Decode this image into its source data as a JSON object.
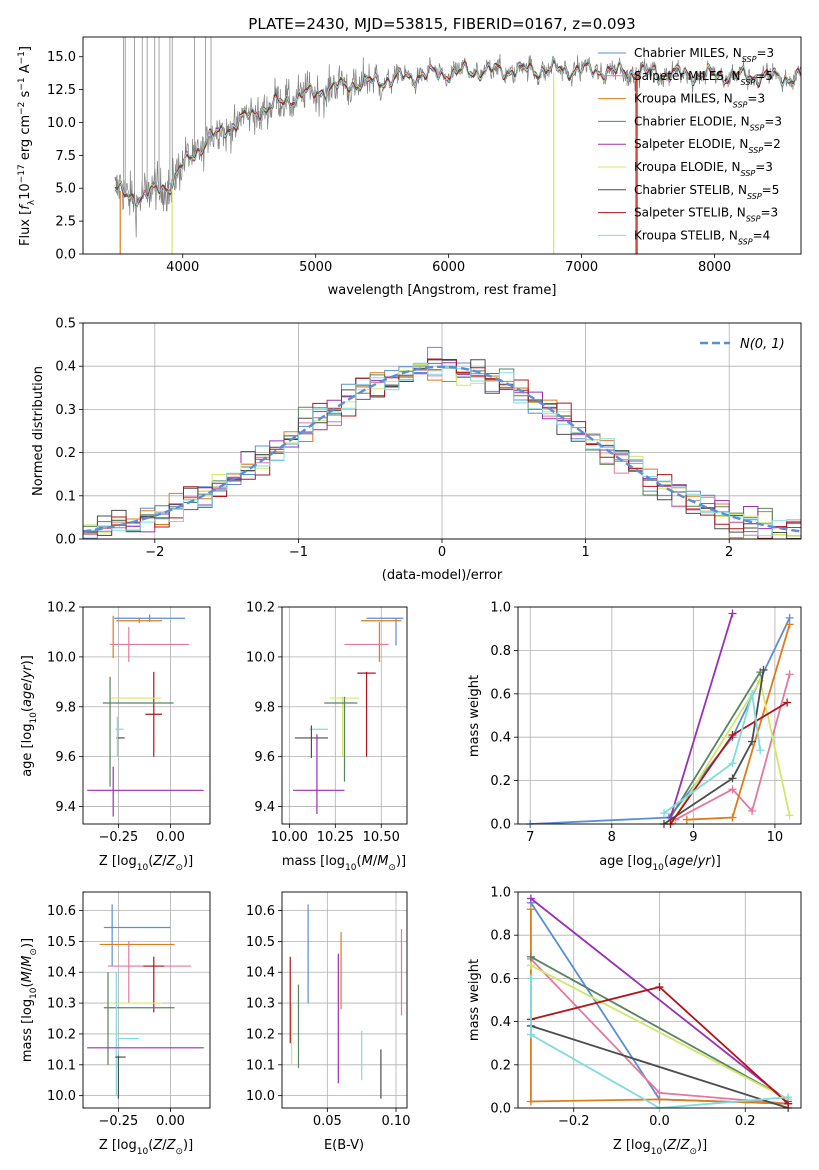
{
  "figure": {
    "title": "PLATE=2430, MJD=53815, FIBERID=0167, z=0.093"
  },
  "colors": {
    "Chabrier MILES": "#5b8ed6",
    "Salpeter MILES": "#e4799f",
    "Kroupa MILES": "#e07b1a",
    "Chabrier ELODIE": "#5a8462",
    "Salpeter ELODIE": "#9a30b4",
    "Kroupa ELODIE": "#cfe86a",
    "Chabrier STELIB": "#4d4d4d",
    "Salpeter STELIB": "#b0141b",
    "Kroupa STELIB": "#7fdbe0",
    "normal": "#5b8ed6"
  },
  "chart_data": [
    {
      "id": "spectrum",
      "type": "line",
      "xlabel": "wavelength [Angstrom, rest frame]",
      "ylabel": "Flux [f_λ 10^-17 erg cm^-2 s^-1 A^-1]",
      "xlim": [
        3250,
        8650
      ],
      "ylim": [
        0,
        16.5
      ],
      "xticks": [
        4000,
        5000,
        6000,
        7000,
        8000
      ],
      "yticks": [
        0.0,
        2.5,
        5.0,
        7.5,
        10.0,
        12.5,
        15.0
      ],
      "data_color": "#808080",
      "continuum": [
        [
          3490,
          5.0
        ],
        [
          3600,
          4.2
        ],
        [
          3750,
          4.6
        ],
        [
          3900,
          5.2
        ],
        [
          4000,
          6.7
        ],
        [
          4200,
          8.8
        ],
        [
          4500,
          10.5
        ],
        [
          4800,
          11.8
        ],
        [
          5000,
          12.3
        ],
        [
          5200,
          12.8
        ],
        [
          5500,
          13.2
        ],
        [
          5800,
          13.6
        ],
        [
          6200,
          13.9
        ],
        [
          6600,
          14.0
        ],
        [
          7000,
          14.0
        ],
        [
          7400,
          13.8
        ],
        [
          8000,
          13.6
        ],
        [
          8650,
          13.4
        ]
      ],
      "legend": [
        {
          "name": "Chabrier MILES",
          "nssp": "3"
        },
        {
          "name": "Salpeter MILES",
          "nssp": "5"
        },
        {
          "name": "Kroupa MILES",
          "nssp": "3"
        },
        {
          "name": "Chabrier ELODIE",
          "nssp": "3"
        },
        {
          "name": "Salpeter ELODIE",
          "nssp": "2"
        },
        {
          "name": "Kroupa ELODIE",
          "nssp": "3"
        },
        {
          "name": "Chabrier STELIB",
          "nssp": "5"
        },
        {
          "name": "Salpeter STELIB",
          "nssp": "3"
        },
        {
          "name": "Kroupa STELIB",
          "nssp": "4"
        }
      ],
      "drops": [
        {
          "x": 3530,
          "y1": 4.8,
          "y2": 0,
          "model": "Kroupa MILES"
        },
        {
          "x": 3920,
          "y1": 5.0,
          "y2": 0,
          "model": "Kroupa ELODIE"
        },
        {
          "x": 6790,
          "y1": 13.8,
          "y2": 0,
          "model": "Kroupa ELODIE"
        },
        {
          "x": 7410,
          "y1": 13.9,
          "y2": 0,
          "model": "Salpeter STELIB"
        },
        {
          "x": 7420,
          "y1": 13.9,
          "y2": 0,
          "model": "Kroupa MILES"
        }
      ]
    },
    {
      "id": "residuals",
      "type": "line",
      "xlabel": "(data-model)/error",
      "ylabel": "Normed distribution",
      "xlim": [
        -2.5,
        2.5
      ],
      "ylim": [
        0,
        0.5
      ],
      "xticks": [
        -2,
        -1,
        0,
        1,
        2
      ],
      "yticks": [
        0.0,
        0.1,
        0.2,
        0.3,
        0.4,
        0.5
      ],
      "grid": true,
      "legend": "N(0, 1)",
      "bin_width": 0.1
    },
    {
      "id": "age-vs-Z",
      "type": "scatter",
      "xlabel": "Z [log10(Z/Z⊙)]",
      "ylabel": "age  [log10(age/yr)]",
      "xlim": [
        -0.42,
        0.19
      ],
      "ylim": [
        9.33,
        10.2
      ],
      "xticks": [
        -0.25,
        0.0
      ],
      "yticks": [
        9.4,
        9.6,
        9.8,
        10.0,
        10.2
      ],
      "grid": true,
      "crosses": [
        {
          "model": "Chabrier MILES",
          "x": -0.1,
          "xerr": 0.17,
          "y": 10.155,
          "yerr": 0.015
        },
        {
          "model": "Kroupa MILES",
          "x": -0.15,
          "xerr": 0.11,
          "y": 10.145,
          "yerr": 0.01
        },
        {
          "model": "Kroupa MILES",
          "x": -0.275,
          "xerr": 0.001,
          "y": 10.08,
          "yerr": 0.085
        },
        {
          "model": "Salpeter MILES",
          "x": -0.1,
          "xerr": 0.19,
          "y": 10.05,
          "yerr": 0.0
        },
        {
          "model": "Salpeter MILES",
          "x": -0.2,
          "xerr": 0.001,
          "y": 10.05,
          "yerr": 0.07
        },
        {
          "model": "Salpeter STELIB",
          "x": -0.08,
          "xerr": 0.04,
          "y": 9.77,
          "yerr": 0.17
        },
        {
          "model": "Kroupa ELODIE",
          "x": -0.165,
          "xerr": 0.12,
          "y": 9.835,
          "yerr": 0.0
        },
        {
          "model": "Chabrier ELODIE",
          "x": -0.155,
          "xerr": 0.17,
          "y": 9.815,
          "yerr": 0.0
        },
        {
          "model": "Chabrier ELODIE",
          "x": -0.29,
          "xerr": 0.001,
          "y": 9.7,
          "yerr": 0.22
        },
        {
          "model": "Kroupa STELIB",
          "x": -0.245,
          "xerr": 0.02,
          "y": 9.71,
          "yerr": 0.0
        },
        {
          "model": "Chabrier STELIB",
          "x": -0.24,
          "xerr": 0.02,
          "y": 9.675,
          "yerr": 0.0
        },
        {
          "model": "Kroupa STELIB",
          "x": -0.255,
          "xerr": 0.001,
          "y": 9.68,
          "yerr": 0.08
        },
        {
          "model": "Salpeter ELODIE",
          "x": -0.12,
          "xerr": 0.28,
          "y": 9.465,
          "yerr": 0.0
        },
        {
          "model": "Salpeter ELODIE",
          "x": -0.275,
          "xerr": 0.001,
          "y": 9.46,
          "yerr": 0.1
        }
      ]
    },
    {
      "id": "age-vs-mass",
      "type": "scatter",
      "xlabel": "mass [log10(M/M⊙)]",
      "ylabel": "",
      "xlim": [
        9.96,
        10.64
      ],
      "ylim": [
        9.33,
        10.2
      ],
      "xticks": [
        10.0,
        10.25,
        10.5
      ],
      "yticks": [
        9.4,
        9.6,
        9.8,
        10.0,
        10.2
      ],
      "grid": true,
      "crosses": [
        {
          "model": "Chabrier MILES",
          "x": 10.52,
          "xerr": 0.1,
          "y": 10.155,
          "yerr": 0.0
        },
        {
          "model": "Chabrier MILES",
          "x": 10.58,
          "xerr": 0.001,
          "y": 10.1,
          "yerr": 0.055
        },
        {
          "model": "Kroupa MILES",
          "x": 10.5,
          "xerr": 0.11,
          "y": 10.145,
          "yerr": 0.0
        },
        {
          "model": "Kroupa MILES",
          "x": 10.49,
          "xerr": 0.001,
          "y": 10.06,
          "yerr": 0.08
        },
        {
          "model": "Salpeter MILES",
          "x": 10.42,
          "xerr": 0.12,
          "y": 10.05,
          "yerr": 0.0
        },
        {
          "model": "Salpeter STELIB",
          "x": 10.42,
          "xerr": 0.05,
          "y": 9.935,
          "yerr": 0.0
        },
        {
          "model": "Salpeter STELIB",
          "x": 10.42,
          "xerr": 0.001,
          "y": 9.77,
          "yerr": 0.17
        },
        {
          "model": "Kroupa ELODIE",
          "x": 10.3,
          "xerr": 0.08,
          "y": 9.835,
          "yerr": 0.0
        },
        {
          "model": "Kroupa ELODIE",
          "x": 10.29,
          "xerr": 0.001,
          "y": 9.72,
          "yerr": 0.12
        },
        {
          "model": "Chabrier ELODIE",
          "x": 10.28,
          "xerr": 0.09,
          "y": 9.815,
          "yerr": 0.0
        },
        {
          "model": "Chabrier ELODIE",
          "x": 10.3,
          "xerr": 0.001,
          "y": 9.67,
          "yerr": 0.17
        },
        {
          "model": "Kroupa STELIB",
          "x": 10.16,
          "xerr": 0.05,
          "y": 9.71,
          "yerr": 0.0
        },
        {
          "model": "Chabrier STELIB",
          "x": 10.12,
          "xerr": 0.09,
          "y": 9.675,
          "yerr": 0.0
        },
        {
          "model": "Chabrier STELIB",
          "x": 10.12,
          "xerr": 0.001,
          "y": 9.66,
          "yerr": 0.065
        },
        {
          "model": "Salpeter ELODIE",
          "x": 10.16,
          "xerr": 0.14,
          "y": 9.465,
          "yerr": 0.0
        },
        {
          "model": "Salpeter ELODIE",
          "x": 10.15,
          "xerr": 0.001,
          "y": 9.53,
          "yerr": 0.16
        }
      ]
    },
    {
      "id": "weight-vs-age",
      "type": "line",
      "xlabel": "age  [log10(age/yr)]",
      "ylabel": "mass weight",
      "xlim": [
        6.85,
        10.32
      ],
      "ylim": [
        0,
        1.0
      ],
      "xticks": [
        7,
        8,
        9,
        10
      ],
      "yticks": [
        0.0,
        0.2,
        0.4,
        0.6,
        0.8,
        1.0
      ],
      "grid": true,
      "series": [
        {
          "model": "Chabrier MILES",
          "points": [
            [
              7.0,
              0.0
            ],
            [
              8.7,
              0.03
            ],
            [
              9.48,
              0.4
            ],
            [
              10.18,
              0.95
            ]
          ]
        },
        {
          "model": "Salpeter MILES",
          "points": [
            [
              8.78,
              0.02
            ],
            [
              9.48,
              0.16
            ],
            [
              9.72,
              0.06
            ],
            [
              10.18,
              0.69
            ]
          ]
        },
        {
          "model": "Kroupa MILES",
          "points": [
            [
              8.92,
              0.02
            ],
            [
              9.48,
              0.03
            ],
            [
              10.18,
              0.92
            ]
          ]
        },
        {
          "model": "Chabrier ELODIE",
          "points": [
            [
              8.72,
              0.03
            ],
            [
              9.82,
              0.7
            ]
          ]
        },
        {
          "model": "Salpeter ELODIE",
          "points": [
            [
              8.72,
              0.03
            ],
            [
              9.48,
              0.97
            ]
          ]
        },
        {
          "model": "Kroupa ELODIE",
          "points": [
            [
              8.74,
              0.01
            ],
            [
              9.82,
              0.66
            ],
            [
              10.18,
              0.04
            ]
          ]
        },
        {
          "model": "Chabrier STELIB",
          "points": [
            [
              8.64,
              0.0
            ],
            [
              9.48,
              0.21
            ],
            [
              9.72,
              0.38
            ],
            [
              9.86,
              0.71
            ]
          ]
        },
        {
          "model": "Salpeter STELIB",
          "points": [
            [
              8.72,
              0.0
            ],
            [
              9.48,
              0.41
            ],
            [
              10.15,
              0.56
            ]
          ]
        },
        {
          "model": "Kroupa STELIB",
          "points": [
            [
              8.64,
              0.05
            ],
            [
              9.48,
              0.28
            ],
            [
              9.72,
              0.6
            ],
            [
              9.82,
              0.34
            ]
          ]
        }
      ]
    },
    {
      "id": "mass-vs-Z",
      "type": "scatter",
      "xlabel": "Z [log10(Z/Z⊙)]",
      "ylabel": "mass [log10(M/M⊙)]",
      "xlim": [
        -0.42,
        0.19
      ],
      "ylim": [
        9.96,
        10.66
      ],
      "xticks": [
        -0.25,
        0.0
      ],
      "yticks": [
        10.0,
        10.1,
        10.2,
        10.3,
        10.4,
        10.5,
        10.6
      ],
      "grid": true,
      "crosses": [
        {
          "model": "Chabrier MILES",
          "x": -0.16,
          "xerr": 0.16,
          "y": 10.545,
          "yerr": 0.0
        },
        {
          "model": "Chabrier MILES",
          "x": -0.28,
          "xerr": 0.001,
          "y": 10.52,
          "yerr": 0.1
        },
        {
          "model": "Kroupa MILES",
          "x": -0.16,
          "xerr": 0.18,
          "y": 10.49,
          "yerr": 0.0
        },
        {
          "model": "Salpeter MILES",
          "x": -0.1,
          "xerr": 0.2,
          "y": 10.42,
          "yerr": 0.0
        },
        {
          "model": "Salpeter MILES",
          "x": -0.2,
          "xerr": 0.001,
          "y": 10.4,
          "yerr": 0.1
        },
        {
          "model": "Salpeter STELIB",
          "x": -0.08,
          "xerr": 0.05,
          "y": 10.42,
          "yerr": 0.0
        },
        {
          "model": "Salpeter STELIB",
          "x": -0.08,
          "xerr": 0.001,
          "y": 10.36,
          "yerr": 0.09
        },
        {
          "model": "Kroupa ELODIE",
          "x": -0.17,
          "xerr": 0.13,
          "y": 10.3,
          "yerr": 0.0
        },
        {
          "model": "Chabrier ELODIE",
          "x": -0.15,
          "xerr": 0.17,
          "y": 10.285,
          "yerr": 0.0
        },
        {
          "model": "Chabrier ELODIE",
          "x": -0.3,
          "xerr": 0.001,
          "y": 10.25,
          "yerr": 0.15
        },
        {
          "model": "Kroupa STELIB",
          "x": -0.2,
          "xerr": 0.05,
          "y": 10.185,
          "yerr": 0.0
        },
        {
          "model": "Kroupa STELIB",
          "x": -0.26,
          "xerr": 0.001,
          "y": 10.2,
          "yerr": 0.2
        },
        {
          "model": "Salpeter ELODIE",
          "x": -0.12,
          "xerr": 0.28,
          "y": 10.155,
          "yerr": 0.0
        },
        {
          "model": "Chabrier STELIB",
          "x": -0.24,
          "xerr": 0.025,
          "y": 10.125,
          "yerr": 0.0
        },
        {
          "model": "Chabrier STELIB",
          "x": -0.25,
          "xerr": 0.001,
          "y": 10.06,
          "yerr": 0.07
        }
      ]
    },
    {
      "id": "mass-vs-ebv",
      "type": "scatter",
      "xlabel": "E(B-V)",
      "ylabel": "",
      "xlim": [
        0.017,
        0.108
      ],
      "ylim": [
        9.96,
        10.66
      ],
      "xticks": [
        0.05,
        0.1
      ],
      "yticks": [
        10.0,
        10.1,
        10.2,
        10.3,
        10.4,
        10.5,
        10.6
      ],
      "grid": true,
      "bars": [
        {
          "model": "Salpeter STELIB",
          "x": 0.023,
          "y1": 10.17,
          "y2": 10.45
        },
        {
          "model": "Kroupa ELODIE",
          "x": 0.024,
          "y1": 10.1,
          "y2": 10.3
        },
        {
          "model": "Chabrier ELODIE",
          "x": 0.029,
          "y1": 10.09,
          "y2": 10.36
        },
        {
          "model": "Chabrier MILES",
          "x": 0.036,
          "y1": 10.3,
          "y2": 10.62
        },
        {
          "model": "Kroupa MILES",
          "x": 0.06,
          "y1": 10.28,
          "y2": 10.53
        },
        {
          "model": "Salpeter ELODIE",
          "x": 0.058,
          "y1": 10.04,
          "y2": 10.46
        },
        {
          "model": "Kroupa STELIB",
          "x": 0.075,
          "y1": 10.05,
          "y2": 10.21
        },
        {
          "model": "Chabrier STELIB",
          "x": 0.089,
          "y1": 9.99,
          "y2": 10.15
        },
        {
          "model": "Salpeter MILES",
          "x": 0.104,
          "y1": 10.26,
          "y2": 10.54
        }
      ]
    },
    {
      "id": "weight-vs-Z",
      "type": "line",
      "xlabel": "Z [log10(Z/Z⊙)]",
      "ylabel": "mass weight",
      "xlim": [
        -0.33,
        0.33
      ],
      "ylim": [
        0,
        1.0
      ],
      "xticks": [
        -0.2,
        0.0,
        0.2
      ],
      "yticks": [
        0.0,
        0.2,
        0.4,
        0.6,
        0.8,
        1.0
      ],
      "grid": true,
      "series": [
        {
          "model": "Chabrier MILES",
          "points": [
            [
              -0.3,
              0.95
            ],
            [
              0.0,
              0.04
            ],
            [
              0.3,
              0.02
            ]
          ]
        },
        {
          "model": "Salpeter MILES",
          "points": [
            [
              -0.3,
              0.69
            ],
            [
              0.0,
              0.07
            ],
            [
              0.3,
              0.02
            ]
          ]
        },
        {
          "model": "Kroupa MILES",
          "points": [
            [
              -0.3,
              0.92
            ],
            [
              -0.3,
              0.03
            ],
            [
              0.0,
              0.04
            ],
            [
              0.3,
              0.02
            ]
          ]
        },
        {
          "model": "Chabrier ELODIE",
          "points": [
            [
              -0.3,
              0.7
            ],
            [
              0.3,
              0.04
            ]
          ]
        },
        {
          "model": "Salpeter ELODIE",
          "points": [
            [
              -0.3,
              0.97
            ],
            [
              0.3,
              0.03
            ]
          ]
        },
        {
          "model": "Kroupa ELODIE",
          "points": [
            [
              -0.3,
              0.66
            ],
            [
              0.3,
              0.04
            ]
          ]
        },
        {
          "model": "Chabrier STELIB",
          "points": [
            [
              -0.3,
              0.38
            ],
            [
              0.3,
              0.0
            ]
          ]
        },
        {
          "model": "Salpeter STELIB",
          "points": [
            [
              -0.3,
              0.41
            ],
            [
              0.0,
              0.56
            ],
            [
              0.3,
              0.02
            ]
          ]
        },
        {
          "model": "Kroupa STELIB",
          "points": [
            [
              -0.3,
              0.6
            ],
            [
              -0.3,
              0.34
            ],
            [
              0.0,
              0.0
            ],
            [
              0.3,
              0.05
            ]
          ]
        }
      ]
    }
  ]
}
